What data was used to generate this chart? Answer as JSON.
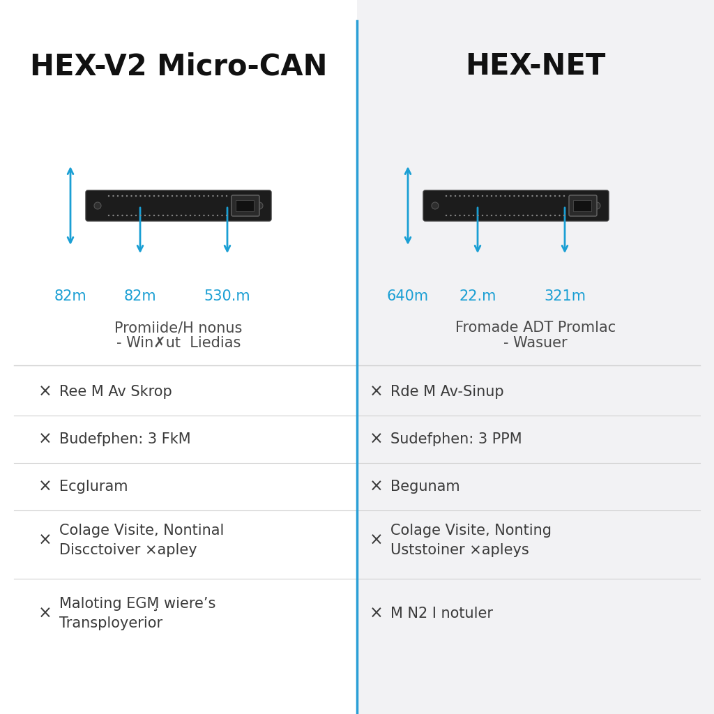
{
  "left_title": "HEX-V2 Micro-CAN",
  "right_title": "HEX-NET",
  "left_bg": "#ffffff",
  "right_bg": "#f2f2f4",
  "divider_color": "#2a9fd6",
  "left_measurements": [
    "82m",
    "82m",
    "530.m"
  ],
  "right_measurements": [
    "640m",
    "22.m",
    "321m"
  ],
  "left_desc_line1": "Promiide/H nonus",
  "left_desc_line2": "- Win✗ut  Liedias",
  "right_desc_line1": "Fromade ADT Promlac",
  "right_desc_line2": "- Wasuer",
  "left_features": [
    "Ree M Av Skrop",
    "Budefphen: 3 FkM",
    "Ecgluram",
    "Colage Visite, Nontinal\nDiscctoiver ×apley",
    "Maloting EGM̧ wiere’s\nTransployerior"
  ],
  "right_features": [
    "Rde M Av-Sinup",
    "Sudefphen: 3 PPM",
    "Begunam",
    "Colage Visite, Nonting\nUststoiner ×apleys",
    "M N2 I notuler"
  ],
  "text_color": "#3a3a3a",
  "subtext_color": "#4a4a4a",
  "arrow_color": "#1a9fd4",
  "line_color": "#d0d0d0",
  "title_fontsize": 30,
  "feature_fontsize": 15,
  "measurement_fontsize": 15,
  "desc_fontsize": 15
}
